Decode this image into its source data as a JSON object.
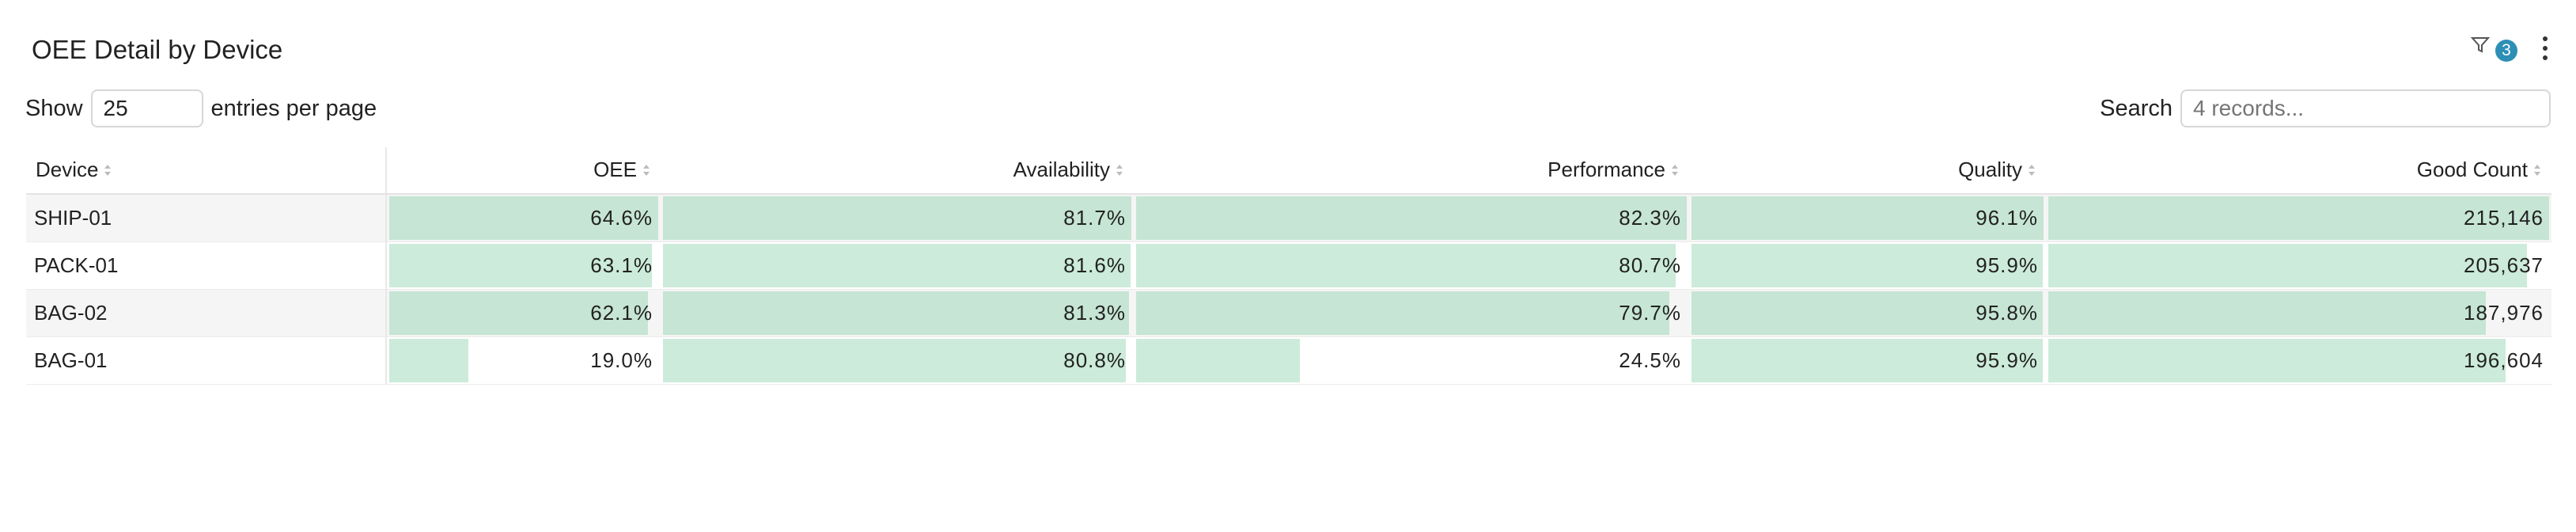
{
  "header": {
    "title": "OEE Detail by Device",
    "filter_count": "3"
  },
  "controls": {
    "show_label": "Show",
    "page_size": "25",
    "entries_label": "entries per page",
    "search_label": "Search",
    "search_placeholder": "4 records..."
  },
  "table": {
    "columns": [
      "Device",
      "OEE",
      "Availability",
      "Performance",
      "Quality",
      "Good Count"
    ],
    "rows": [
      [
        "SHIP-01",
        "64.6%",
        "81.7%",
        "82.3%",
        "96.1%",
        "215,146"
      ],
      [
        "PACK-01",
        "63.1%",
        "81.6%",
        "80.7%",
        "95.9%",
        "205,637"
      ],
      [
        "BAG-02",
        "62.1%",
        "81.3%",
        "79.7%",
        "95.8%",
        "187,976"
      ],
      [
        "BAG-01",
        "19.0%",
        "80.8%",
        "24.5%",
        "95.9%",
        "196,604"
      ]
    ]
  }
}
